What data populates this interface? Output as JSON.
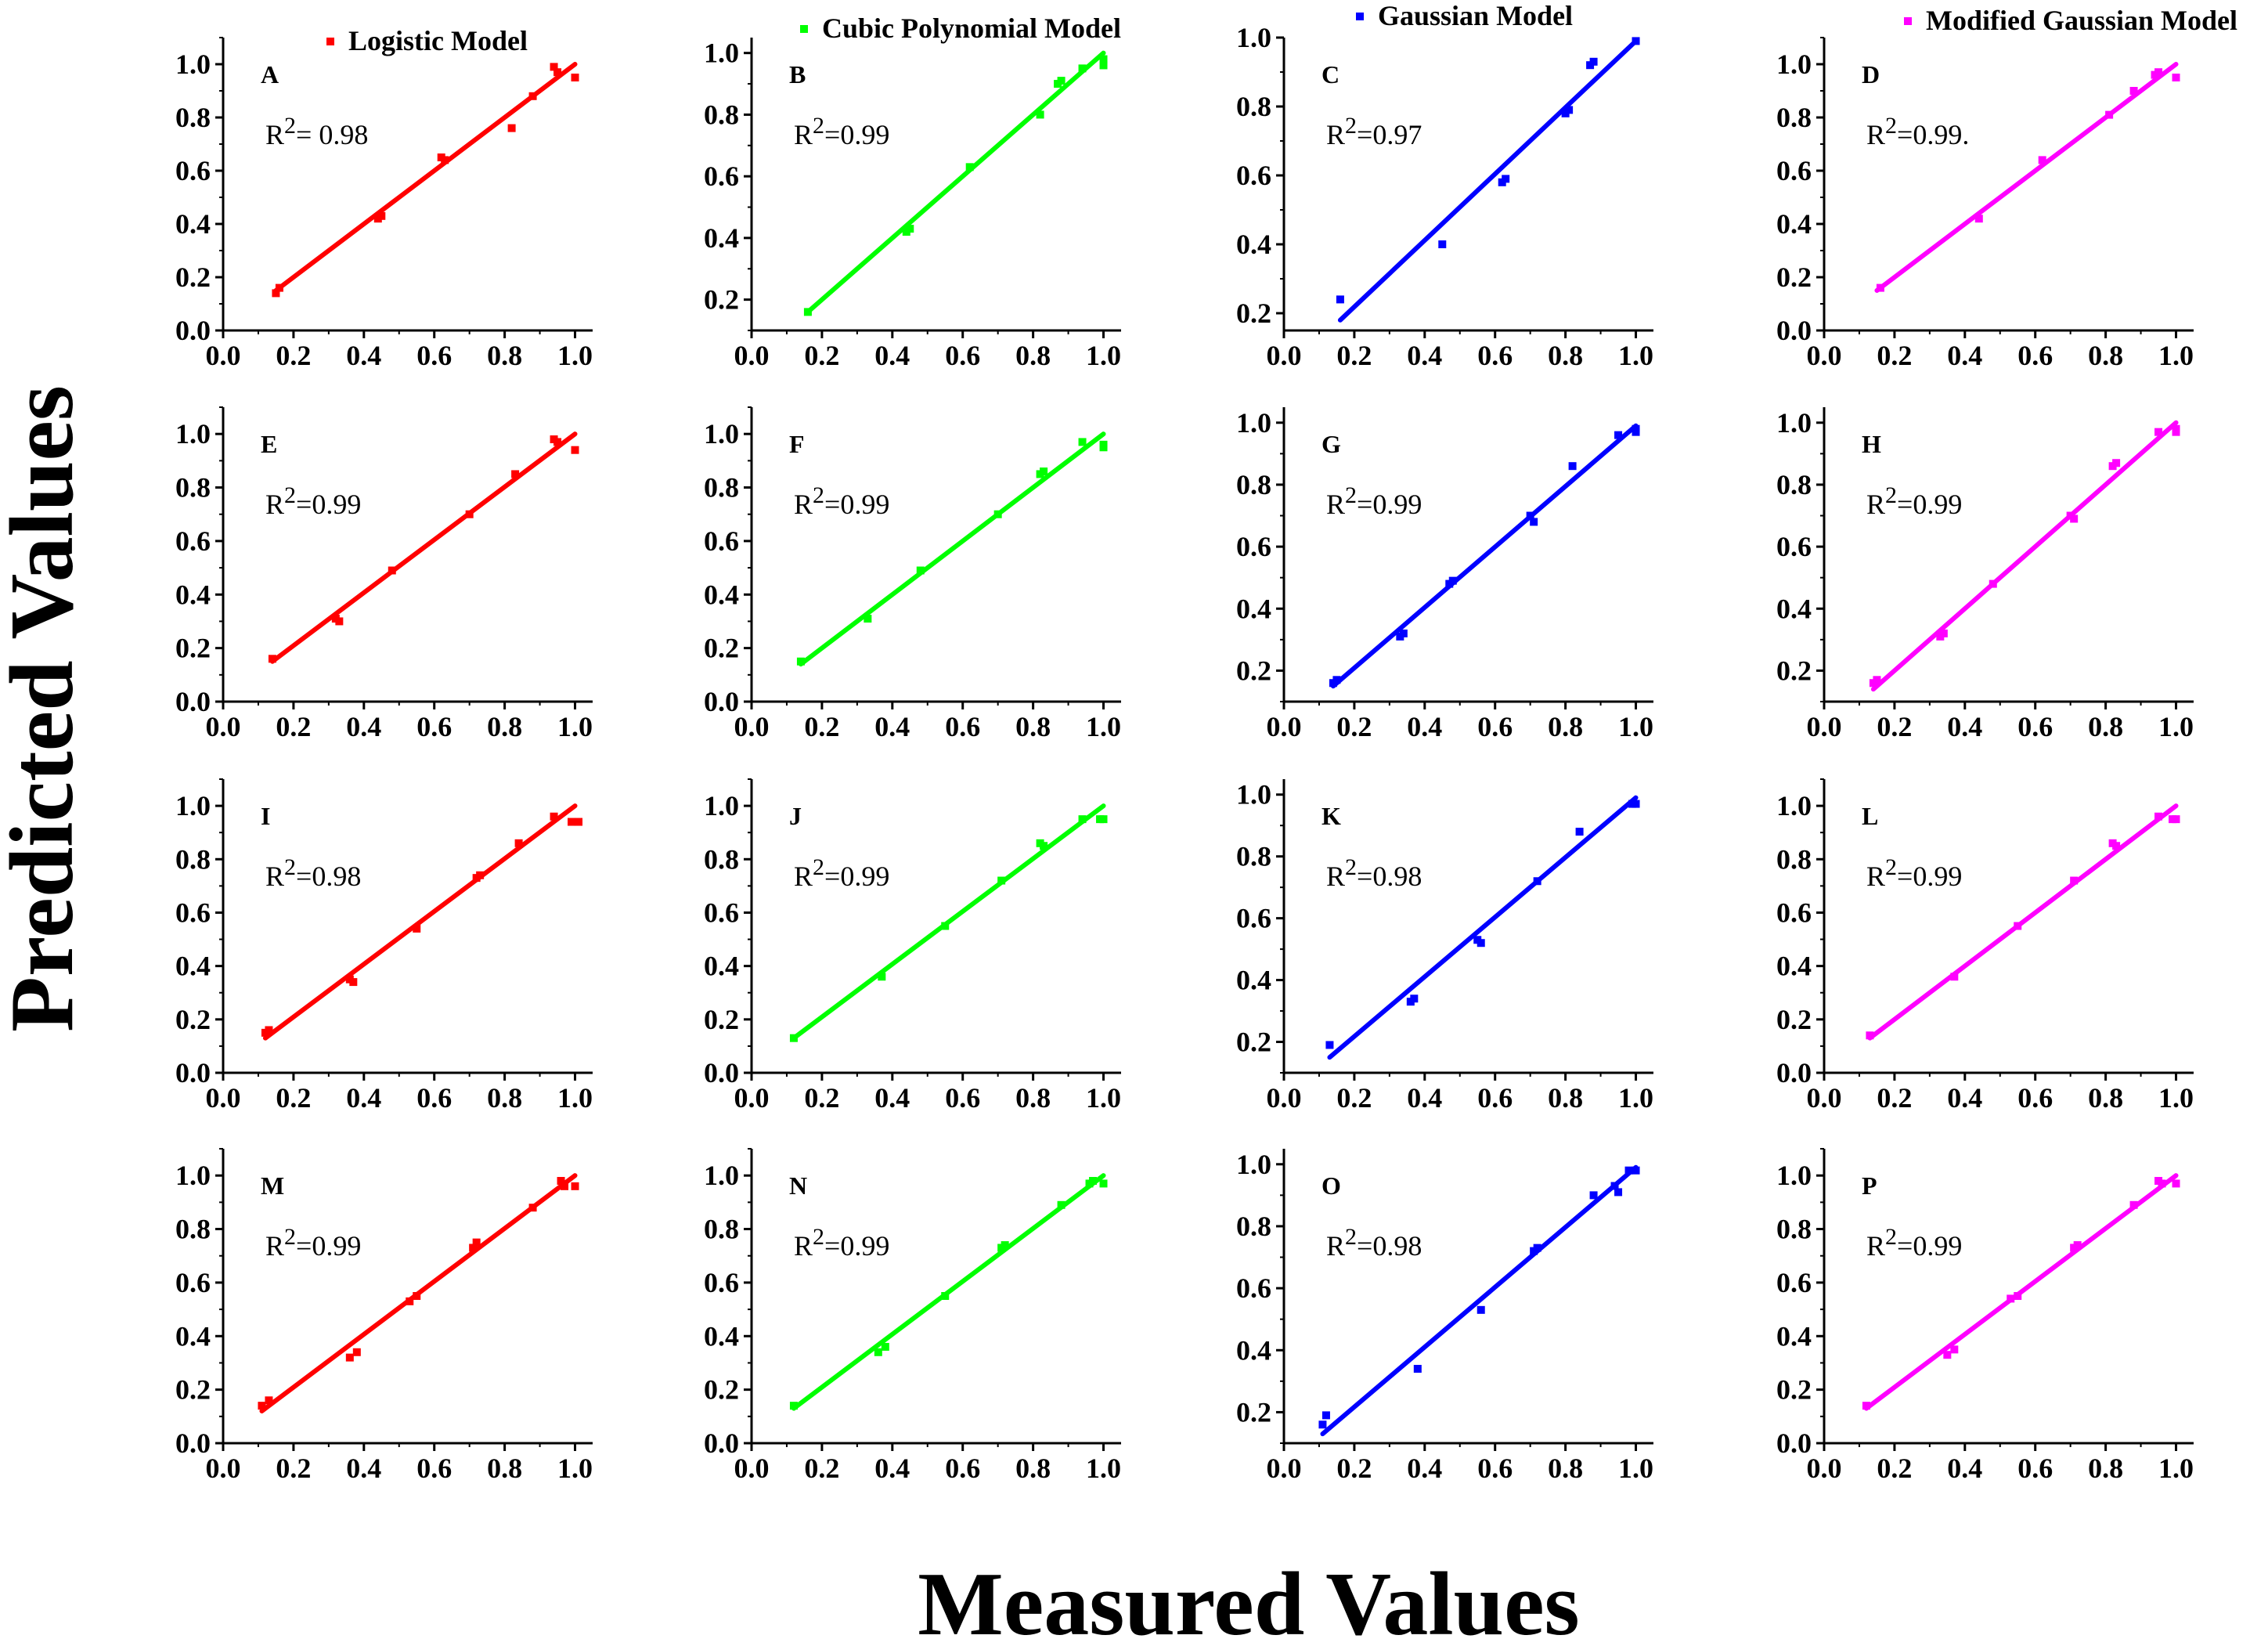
{
  "figure": {
    "xlabel": "Measured Values",
    "ylabel": "Predicted Values"
  },
  "colors": {
    "Logistic Model": "#ff0000",
    "Cubic Polynomial Model": "#00ff00",
    "Gaussian Model": "#0000ff",
    "Modified Gaussian Model": "#ff00ff"
  },
  "legend": [
    "Logistic Model",
    "Cubic Polynomial Model",
    "Gaussian Model",
    "Modified Gaussian Model"
  ],
  "chart_data": [
    {
      "id": "A",
      "type": "scatter",
      "model": "Logistic Model",
      "r2_label": "R2= 0.98",
      "xlim": [
        0,
        1.05
      ],
      "ylim": [
        0,
        1.1
      ],
      "xticks": [
        "0.0",
        "0.2",
        "0.4",
        "0.6",
        "0.8",
        "1.0"
      ],
      "yticks": [
        "0.0",
        "0.2",
        "0.4",
        "0.6",
        "0.8",
        "1.0"
      ],
      "fit": {
        "x": [
          0.15,
          1.0
        ],
        "y": [
          0.15,
          1.0
        ]
      },
      "points": {
        "x": [
          0.15,
          0.16,
          0.44,
          0.45,
          0.62,
          0.63,
          0.82,
          0.88,
          0.94,
          0.95,
          1.0
        ],
        "y": [
          0.14,
          0.16,
          0.42,
          0.43,
          0.65,
          0.64,
          0.76,
          0.88,
          0.99,
          0.97,
          0.95
        ]
      }
    },
    {
      "id": "B",
      "type": "scatter",
      "model": "Cubic Polynomial Model",
      "r2_label": "R2=0.99",
      "xlim": [
        0,
        1.05
      ],
      "ylim": [
        0.1,
        1.05
      ],
      "xticks": [
        "0.0",
        "0.2",
        "0.4",
        "0.6",
        "0.8",
        "1.0"
      ],
      "yticks": [
        "0.2",
        "0.4",
        "0.6",
        "0.8",
        "1.0"
      ],
      "fit": {
        "x": [
          0.16,
          1.0
        ],
        "y": [
          0.16,
          1.0
        ]
      },
      "points": {
        "x": [
          0.16,
          0.44,
          0.45,
          0.62,
          0.82,
          0.87,
          0.88,
          0.94,
          1.0,
          1.0
        ],
        "y": [
          0.16,
          0.42,
          0.43,
          0.63,
          0.8,
          0.9,
          0.91,
          0.95,
          0.96,
          0.98
        ]
      }
    },
    {
      "id": "C",
      "type": "scatter",
      "model": "Gaussian Model",
      "r2_label": "R2=0.97",
      "xlim": [
        0,
        1.05
      ],
      "ylim": [
        0.15,
        1.0
      ],
      "xticks": [
        "0.0",
        "0.2",
        "0.4",
        "0.6",
        "0.8",
        "1.0"
      ],
      "yticks": [
        "0.2",
        "0.4",
        "0.6",
        "0.8",
        "1.0"
      ],
      "fit": {
        "x": [
          0.16,
          1.0
        ],
        "y": [
          0.18,
          0.99
        ]
      },
      "points": {
        "x": [
          0.16,
          0.45,
          0.62,
          0.63,
          0.8,
          0.81,
          0.87,
          0.88,
          1.0
        ],
        "y": [
          0.24,
          0.4,
          0.58,
          0.59,
          0.78,
          0.79,
          0.92,
          0.93,
          0.99
        ]
      }
    },
    {
      "id": "D",
      "type": "scatter",
      "model": "Modified Gaussian Model",
      "r2_label": "R2=0.99.",
      "xlim": [
        0,
        1.05
      ],
      "ylim": [
        0,
        1.1
      ],
      "xticks": [
        "0.0",
        "0.2",
        "0.4",
        "0.6",
        "0.8",
        "1.0"
      ],
      "yticks": [
        "0.0",
        "0.2",
        "0.4",
        "0.6",
        "0.8",
        "1.0"
      ],
      "fit": {
        "x": [
          0.15,
          1.0
        ],
        "y": [
          0.15,
          1.0
        ]
      },
      "points": {
        "x": [
          0.16,
          0.44,
          0.62,
          0.81,
          0.88,
          0.94,
          0.95,
          1.0
        ],
        "y": [
          0.16,
          0.42,
          0.64,
          0.81,
          0.9,
          0.96,
          0.97,
          0.95
        ]
      }
    },
    {
      "id": "E",
      "type": "scatter",
      "model": "Logistic Model",
      "r2_label": "R2=0.99",
      "xlim": [
        0,
        1.05
      ],
      "ylim": [
        0,
        1.1
      ],
      "xticks": [
        "0.0",
        "0.2",
        "0.4",
        "0.6",
        "0.8",
        "1.0"
      ],
      "yticks": [
        "0.0",
        "0.2",
        "0.4",
        "0.6",
        "0.8",
        "1.0"
      ],
      "fit": {
        "x": [
          0.14,
          1.0
        ],
        "y": [
          0.15,
          1.0
        ]
      },
      "points": {
        "x": [
          0.14,
          0.32,
          0.33,
          0.48,
          0.7,
          0.83,
          0.94,
          0.95,
          1.0
        ],
        "y": [
          0.16,
          0.31,
          0.3,
          0.49,
          0.7,
          0.85,
          0.98,
          0.97,
          0.94
        ]
      }
    },
    {
      "id": "F",
      "type": "scatter",
      "model": "Cubic Polynomial Model",
      "r2_label": "R2=0.99",
      "xlim": [
        0,
        1.05
      ],
      "ylim": [
        0,
        1.1
      ],
      "xticks": [
        "0.0",
        "0.2",
        "0.4",
        "0.6",
        "0.8",
        "1.0"
      ],
      "yticks": [
        "0.0",
        "0.2",
        "0.4",
        "0.6",
        "0.8",
        "1.0"
      ],
      "fit": {
        "x": [
          0.14,
          1.0
        ],
        "y": [
          0.14,
          1.0
        ]
      },
      "points": {
        "x": [
          0.14,
          0.33,
          0.48,
          0.7,
          0.82,
          0.83,
          0.94,
          1.0,
          1.0
        ],
        "y": [
          0.15,
          0.31,
          0.49,
          0.7,
          0.85,
          0.86,
          0.97,
          0.95,
          0.96
        ]
      }
    },
    {
      "id": "G",
      "type": "scatter",
      "model": "Gaussian Model",
      "r2_label": "R2=0.99",
      "xlim": [
        0,
        1.05
      ],
      "ylim": [
        0.1,
        1.05
      ],
      "xticks": [
        "0.0",
        "0.2",
        "0.4",
        "0.6",
        "0.8",
        "1.0"
      ],
      "yticks": [
        "0.2",
        "0.4",
        "0.6",
        "0.8",
        "1.0"
      ],
      "fit": {
        "x": [
          0.14,
          1.0
        ],
        "y": [
          0.15,
          0.99
        ]
      },
      "points": {
        "x": [
          0.14,
          0.15,
          0.33,
          0.34,
          0.47,
          0.48,
          0.7,
          0.71,
          0.82,
          0.95,
          1.0,
          1.0
        ],
        "y": [
          0.16,
          0.17,
          0.31,
          0.32,
          0.48,
          0.49,
          0.7,
          0.68,
          0.86,
          0.96,
          0.97,
          0.98
        ]
      }
    },
    {
      "id": "H",
      "type": "scatter",
      "model": "Modified Gaussian Model",
      "r2_label": "R2=0.99",
      "xlim": [
        0,
        1.05
      ],
      "ylim": [
        0.1,
        1.05
      ],
      "xticks": [
        "0.0",
        "0.2",
        "0.4",
        "0.6",
        "0.8",
        "1.0"
      ],
      "yticks": [
        "0.2",
        "0.4",
        "0.6",
        "0.8",
        "1.0"
      ],
      "fit": {
        "x": [
          0.14,
          1.0
        ],
        "y": [
          0.14,
          1.0
        ]
      },
      "points": {
        "x": [
          0.14,
          0.15,
          0.33,
          0.34,
          0.48,
          0.7,
          0.71,
          0.82,
          0.83,
          0.95,
          1.0,
          1.0
        ],
        "y": [
          0.16,
          0.17,
          0.31,
          0.32,
          0.48,
          0.7,
          0.69,
          0.86,
          0.87,
          0.97,
          0.97,
          0.98
        ]
      }
    },
    {
      "id": "I",
      "type": "scatter",
      "model": "Logistic Model",
      "r2_label": "R2=0.98",
      "xlim": [
        0,
        1.05
      ],
      "ylim": [
        0,
        1.1
      ],
      "xticks": [
        "0.0",
        "0.2",
        "0.4",
        "0.6",
        "0.8",
        "1.0"
      ],
      "yticks": [
        "0.0",
        "0.2",
        "0.4",
        "0.6",
        "0.8",
        "1.0"
      ],
      "fit": {
        "x": [
          0.12,
          1.0
        ],
        "y": [
          0.13,
          1.0
        ]
      },
      "points": {
        "x": [
          0.12,
          0.13,
          0.36,
          0.37,
          0.55,
          0.72,
          0.73,
          0.84,
          0.94,
          0.99,
          1.01
        ],
        "y": [
          0.15,
          0.16,
          0.35,
          0.34,
          0.54,
          0.73,
          0.74,
          0.86,
          0.96,
          0.94,
          0.94
        ]
      }
    },
    {
      "id": "J",
      "type": "scatter",
      "model": "Cubic Polynomial Model",
      "r2_label": "R2=0.99",
      "xlim": [
        0,
        1.05
      ],
      "ylim": [
        0,
        1.1
      ],
      "xticks": [
        "0.0",
        "0.2",
        "0.4",
        "0.6",
        "0.8",
        "1.0"
      ],
      "yticks": [
        "0.0",
        "0.2",
        "0.4",
        "0.6",
        "0.8",
        "1.0"
      ],
      "fit": {
        "x": [
          0.12,
          1.0
        ],
        "y": [
          0.13,
          1.0
        ]
      },
      "points": {
        "x": [
          0.12,
          0.37,
          0.55,
          0.71,
          0.82,
          0.83,
          0.94,
          0.99,
          1.0
        ],
        "y": [
          0.13,
          0.36,
          0.55,
          0.72,
          0.86,
          0.85,
          0.95,
          0.95,
          0.95
        ]
      }
    },
    {
      "id": "K",
      "type": "scatter",
      "model": "Gaussian Model",
      "r2_label": "R2=0.98",
      "xlim": [
        0,
        1.05
      ],
      "ylim": [
        0.1,
        1.05
      ],
      "xticks": [
        "0.0",
        "0.2",
        "0.4",
        "0.6",
        "0.8",
        "1.0"
      ],
      "yticks": [
        "0.2",
        "0.4",
        "0.6",
        "0.8",
        "1.0"
      ],
      "fit": {
        "x": [
          0.13,
          1.0
        ],
        "y": [
          0.15,
          0.99
        ]
      },
      "points": {
        "x": [
          0.13,
          0.36,
          0.37,
          0.55,
          0.56,
          0.72,
          0.84,
          0.99,
          1.0
        ],
        "y": [
          0.19,
          0.33,
          0.34,
          0.53,
          0.52,
          0.72,
          0.88,
          0.97,
          0.97
        ]
      }
    },
    {
      "id": "L",
      "type": "scatter",
      "model": "Modified Gaussian Model",
      "r2_label": "R2=0.99",
      "xlim": [
        0,
        1.05
      ],
      "ylim": [
        0,
        1.1
      ],
      "xticks": [
        "0.0",
        "0.2",
        "0.4",
        "0.6",
        "0.8",
        "1.0"
      ],
      "yticks": [
        "0.0",
        "0.2",
        "0.4",
        "0.6",
        "0.8",
        "1.0"
      ],
      "fit": {
        "x": [
          0.13,
          1.0
        ],
        "y": [
          0.13,
          1.0
        ]
      },
      "points": {
        "x": [
          0.13,
          0.37,
          0.55,
          0.71,
          0.82,
          0.83,
          0.95,
          0.99,
          1.0
        ],
        "y": [
          0.14,
          0.36,
          0.55,
          0.72,
          0.86,
          0.85,
          0.96,
          0.95,
          0.95
        ]
      }
    },
    {
      "id": "M",
      "type": "scatter",
      "model": "Logistic Model",
      "r2_label": "R2=0.99",
      "xlim": [
        0,
        1.05
      ],
      "ylim": [
        0,
        1.1
      ],
      "xticks": [
        "0.0",
        "0.2",
        "0.4",
        "0.6",
        "0.8",
        "1.0"
      ],
      "yticks": [
        "0.0",
        "0.2",
        "0.4",
        "0.6",
        "0.8",
        "1.0"
      ],
      "fit": {
        "x": [
          0.11,
          1.0
        ],
        "y": [
          0.12,
          1.0
        ]
      },
      "points": {
        "x": [
          0.11,
          0.13,
          0.36,
          0.38,
          0.53,
          0.55,
          0.71,
          0.72,
          0.88,
          0.96,
          0.97,
          1.0
        ],
        "y": [
          0.14,
          0.16,
          0.32,
          0.34,
          0.53,
          0.55,
          0.73,
          0.75,
          0.88,
          0.98,
          0.96,
          0.96
        ]
      }
    },
    {
      "id": "N",
      "type": "scatter",
      "model": "Cubic Polynomial Model",
      "r2_label": "R2=0.99",
      "xlim": [
        0,
        1.05
      ],
      "ylim": [
        0,
        1.1
      ],
      "xticks": [
        "0.0",
        "0.2",
        "0.4",
        "0.6",
        "0.8",
        "1.0"
      ],
      "yticks": [
        "0.0",
        "0.2",
        "0.4",
        "0.6",
        "0.8",
        "1.0"
      ],
      "fit": {
        "x": [
          0.12,
          1.0
        ],
        "y": [
          0.13,
          1.0
        ]
      },
      "points": {
        "x": [
          0.12,
          0.36,
          0.38,
          0.55,
          0.71,
          0.72,
          0.88,
          0.96,
          0.97,
          1.0
        ],
        "y": [
          0.14,
          0.34,
          0.36,
          0.55,
          0.73,
          0.74,
          0.89,
          0.97,
          0.98,
          0.97
        ]
      }
    },
    {
      "id": "O",
      "type": "scatter",
      "model": "Gaussian Model",
      "r2_label": "R2=0.98",
      "xlim": [
        0,
        1.05
      ],
      "ylim": [
        0.1,
        1.05
      ],
      "xticks": [
        "0.0",
        "0.2",
        "0.4",
        "0.6",
        "0.8",
        "1.0"
      ],
      "yticks": [
        "0.2",
        "0.4",
        "0.6",
        "0.8",
        "1.0"
      ],
      "fit": {
        "x": [
          0.11,
          1.0
        ],
        "y": [
          0.13,
          0.99
        ]
      },
      "points": {
        "x": [
          0.11,
          0.12,
          0.38,
          0.56,
          0.71,
          0.72,
          0.88,
          0.94,
          0.95,
          0.98,
          1.0
        ],
        "y": [
          0.16,
          0.19,
          0.34,
          0.53,
          0.72,
          0.73,
          0.9,
          0.93,
          0.91,
          0.98,
          0.98
        ]
      }
    },
    {
      "id": "P",
      "type": "scatter",
      "model": "Modified Gaussian Model",
      "r2_label": "R2=0.99",
      "xlim": [
        0,
        1.05
      ],
      "ylim": [
        0,
        1.1
      ],
      "xticks": [
        "0.0",
        "0.2",
        "0.4",
        "0.6",
        "0.8",
        "1.0"
      ],
      "yticks": [
        "0.0",
        "0.2",
        "0.4",
        "0.6",
        "0.8",
        "1.0"
      ],
      "fit": {
        "x": [
          0.12,
          1.0
        ],
        "y": [
          0.13,
          1.0
        ]
      },
      "points": {
        "x": [
          0.12,
          0.35,
          0.37,
          0.53,
          0.55,
          0.71,
          0.72,
          0.88,
          0.95,
          0.96,
          1.0
        ],
        "y": [
          0.14,
          0.33,
          0.35,
          0.54,
          0.55,
          0.73,
          0.74,
          0.89,
          0.98,
          0.97,
          0.97
        ]
      }
    }
  ]
}
